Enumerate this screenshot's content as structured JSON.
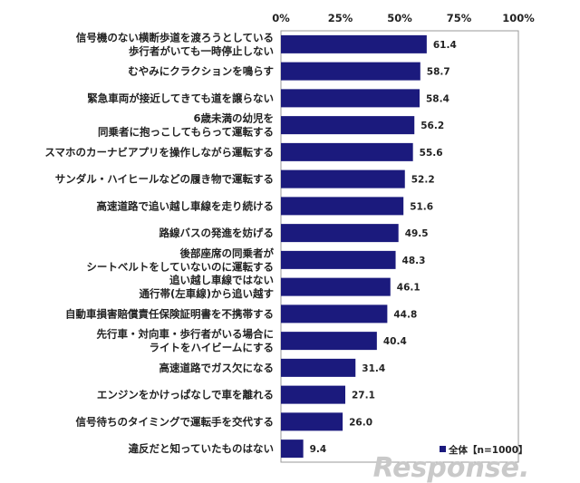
{
  "chart_data": {
    "type": "bar",
    "orientation": "horizontal",
    "categories": [
      [
        "信号機のない横断歩道を渡ろうとしている",
        "歩行者がいても一時停止しない"
      ],
      [
        "むやみにクラクションを鳴らす"
      ],
      [
        "緊急車両が接近してきても道を譲らない"
      ],
      [
        "6歳未満の幼児を",
        "同乗者に抱っこしてもらって運転する"
      ],
      [
        "スマホのカーナビアプリを操作しながら運転する"
      ],
      [
        "サンダル・ハイヒールなどの履き物で運転する"
      ],
      [
        "高速道路で追い越し車線を走り続ける"
      ],
      [
        "路線バスの発進を妨げる"
      ],
      [
        "後部座席の同乗者が",
        "シートベルトをしていないのに運転する"
      ],
      [
        "追い越し車線ではない",
        "通行帯(左車線)から追い越す"
      ],
      [
        "自動車損害賠償責任保険証明書を不携帯する"
      ],
      [
        "先行車・対向車・歩行者がいる場合に",
        "ライトをハイビームにする"
      ],
      [
        "高速道路でガス欠になる"
      ],
      [
        "エンジンをかけっぱなしで車を離れる"
      ],
      [
        "信号待ちのタイミングで運転手を交代する"
      ],
      [
        "違反だと知っていたものはない"
      ]
    ],
    "series": [
      {
        "name": "全体【n=1000】",
        "color": "#1b1a7d",
        "values": [
          61.4,
          58.7,
          58.4,
          56.2,
          55.6,
          52.2,
          51.6,
          49.5,
          48.3,
          46.1,
          44.8,
          40.4,
          31.4,
          27.1,
          26.0,
          9.4
        ]
      }
    ],
    "value_labels": [
      "61.4",
      "58.7",
      "58.4",
      "56.2",
      "55.6",
      "52.2",
      "51.6",
      "49.5",
      "48.3",
      "46.1",
      "44.8",
      "40.4",
      "31.4",
      "27.1",
      "26.0",
      "9.4"
    ],
    "x_ticks": [
      "0%",
      "25%",
      "50%",
      "75%",
      "100%"
    ],
    "xlim": [
      0,
      100
    ],
    "legend_position": "bottom-right",
    "grid": false
  },
  "watermark": "Response."
}
